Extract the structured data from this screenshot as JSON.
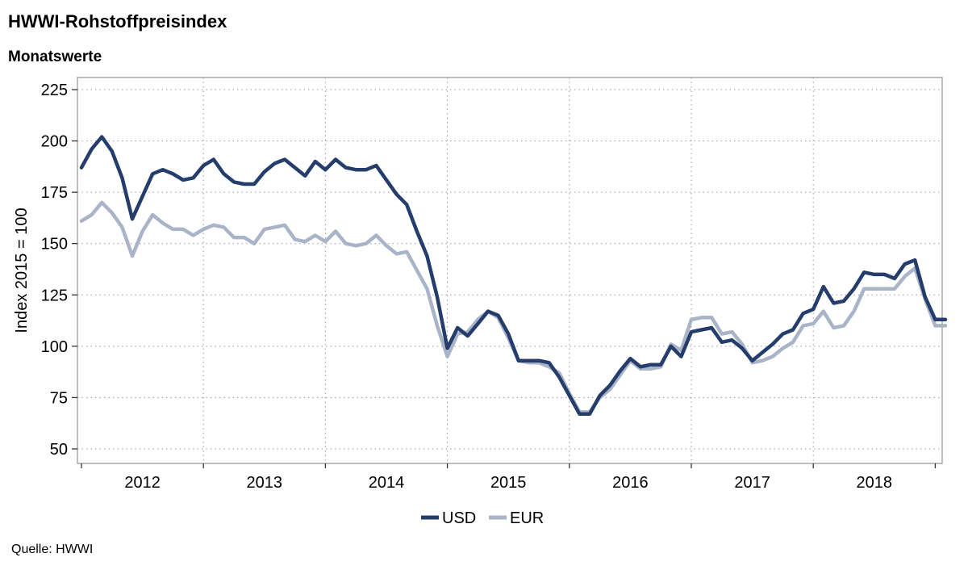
{
  "header": {
    "title": "HWWI-Rohstoffpreisindex",
    "subtitle": "Monatswerte"
  },
  "footer": {
    "source": "Quelle: HWWI"
  },
  "chart_data": {
    "type": "line",
    "ylabel": "Index 2015 = 100",
    "ylim": [
      45,
      228
    ],
    "yticks": [
      50,
      75,
      100,
      125,
      150,
      175,
      200,
      225
    ],
    "year_labels": [
      "2012",
      "2013",
      "2014",
      "2015",
      "2016",
      "2017",
      "2018"
    ],
    "x_start": "2012-01",
    "x_range_months": [
      0,
      84
    ],
    "grid": true,
    "legend_position": "bottom-center",
    "series": [
      {
        "name": "USD",
        "color": "#243d6b",
        "values": [
          187,
          196,
          202,
          195,
          182,
          162,
          173,
          184,
          186,
          184,
          181,
          182,
          188,
          191,
          184,
          180,
          179,
          179,
          185,
          189,
          191,
          187,
          183,
          190,
          186,
          191,
          187,
          186,
          186,
          188,
          181,
          174,
          169,
          156,
          144,
          124,
          99,
          109,
          105,
          111,
          117,
          115,
          106,
          93,
          93,
          93,
          92,
          85,
          76,
          67,
          67,
          76,
          81,
          88,
          94,
          90,
          91,
          91,
          100,
          95,
          107,
          108,
          109,
          102,
          103,
          99,
          93,
          97,
          101,
          106,
          108,
          116,
          118,
          129,
          121,
          122,
          128,
          136,
          135,
          135,
          133,
          140,
          142,
          124,
          113,
          113
        ]
      },
      {
        "name": "EUR",
        "color": "#aab4c8",
        "values": [
          161,
          164,
          170,
          165,
          158,
          144,
          156,
          164,
          160,
          157,
          157,
          154,
          157,
          159,
          158,
          153,
          153,
          150,
          157,
          158,
          159,
          152,
          151,
          154,
          151,
          156,
          150,
          149,
          150,
          154,
          149,
          145,
          146,
          137,
          128,
          110,
          95,
          106,
          107,
          113,
          117,
          114,
          104,
          93,
          92,
          92,
          90,
          87,
          77,
          68,
          68,
          75,
          79,
          86,
          93,
          89,
          89,
          90,
          101,
          98,
          113,
          114,
          114,
          106,
          107,
          101,
          92,
          93,
          95,
          99,
          102,
          110,
          111,
          117,
          109,
          110,
          117,
          128,
          128,
          128,
          128,
          134,
          138,
          123,
          110,
          110
        ]
      }
    ]
  }
}
